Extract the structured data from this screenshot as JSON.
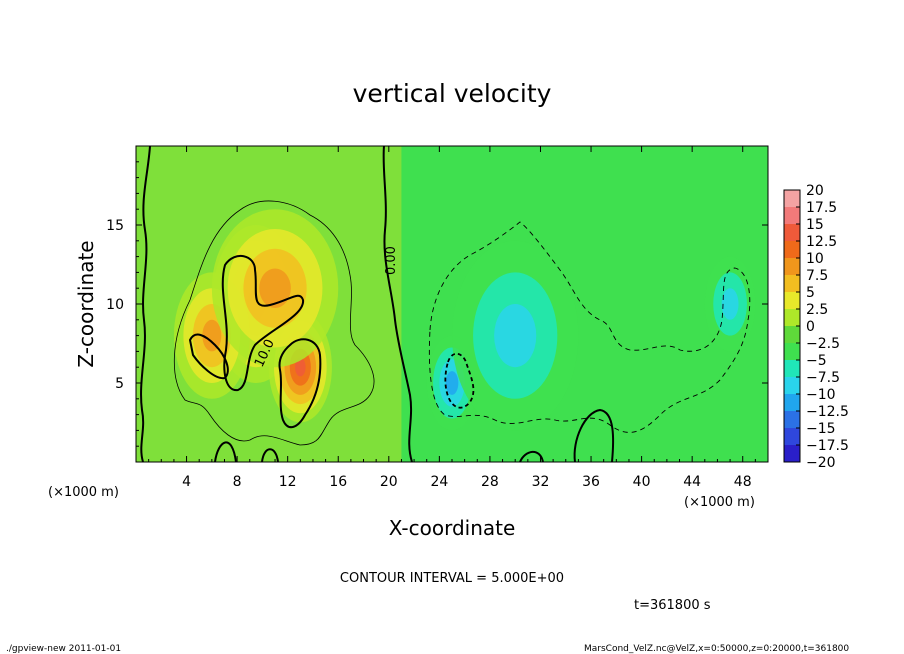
{
  "chart_data": {
    "type": "heatmap",
    "title": "vertical velocity",
    "xlabel": "X-coordinate",
    "ylabel": "Z-coordinate",
    "x_units_left": "(×1000 m)",
    "x_units_right": "(×1000 m)",
    "xlim": [
      0,
      50
    ],
    "ylim": [
      0,
      20
    ],
    "x_ticks": [
      4,
      8,
      12,
      16,
      20,
      24,
      28,
      32,
      36,
      40,
      44,
      48
    ],
    "y_ticks": [
      5,
      10,
      15
    ],
    "colorbar": {
      "labels": [
        "20",
        "17.5",
        "15",
        "12.5",
        "10",
        "7.5",
        "5",
        "2.5",
        "0",
        "−2.5",
        "−5",
        "−7.5",
        "−10",
        "−12.5",
        "−15",
        "−17.5",
        "−20"
      ],
      "colors": [
        "#f4a3a3",
        "#f27a7a",
        "#ef5a3a",
        "#ef6a1a",
        "#f0961c",
        "#f2be20",
        "#e8e82a",
        "#aee829",
        "#5fd93a",
        "#3fe04f",
        "#20e6b8",
        "#2ad4ec",
        "#20a6ee",
        "#2b71e6",
        "#2f47dd",
        "#2a1fc9",
        "#6a1fb3"
      ]
    },
    "contour_label_zero": "0.00",
    "contour_label_ten": "10.0",
    "contour_interval_text": "CONTOUR INTERVAL = 5.000E+00",
    "time_text": "t=361800  s",
    "features": [
      {
        "x": 9.5,
        "z": 10,
        "value": 12,
        "radius_x": 3.5,
        "radius_z": 5
      },
      {
        "x": 13,
        "z": 6,
        "value": 13,
        "radius_x": 2.5,
        "radius_z": 3.5
      },
      {
        "x": 6,
        "z": 8,
        "value": 8,
        "radius_x": 3,
        "radius_z": 4
      },
      {
        "x": 11,
        "z": 11,
        "value": 9,
        "radius_x": 5,
        "radius_z": 5
      },
      {
        "x": 25,
        "z": 5,
        "value": -9,
        "radius_x": 2,
        "radius_z": 3
      },
      {
        "x": 30,
        "z": 8,
        "value": -6,
        "radius_x": 5,
        "radius_z": 6
      },
      {
        "x": 47,
        "z": 10,
        "value": -6,
        "radius_x": 2,
        "radius_z": 3
      }
    ]
  },
  "footer": {
    "left": "./gpview-new   2011-01-01",
    "right": "MarsCond_VelZ.nc@VelZ,x=0:50000,z=0:20000,t=361800"
  }
}
